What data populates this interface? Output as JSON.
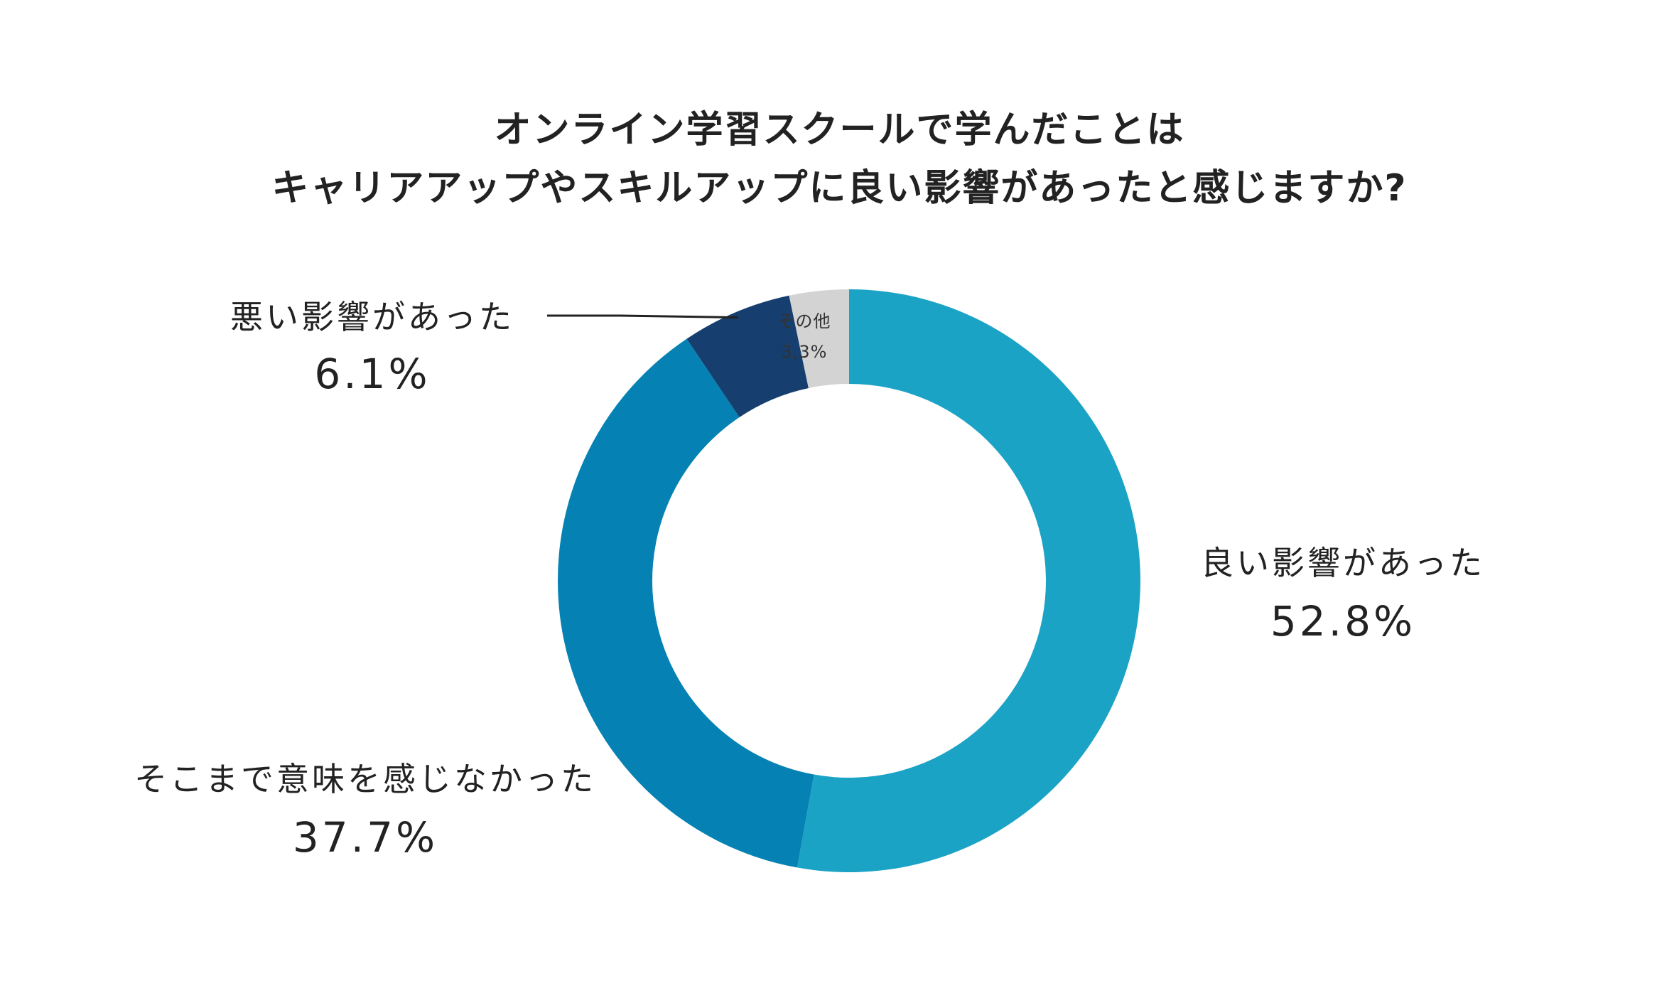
{
  "chart_data": {
    "type": "pie",
    "variant": "donut",
    "title": [
      "オンライン学習スクールで学んだことは",
      "キャリアアップやスキルアップに良い影響があったと感じますか?"
    ],
    "unit": "%",
    "slices": [
      {
        "label": "良い影響があった",
        "value": 52.8,
        "value_text": "52.8%",
        "color": "#1ba3c6"
      },
      {
        "label": "そこまで意味を感じなかった",
        "value": 37.7,
        "value_text": "37.7%",
        "color": "#0582b3"
      },
      {
        "label": "悪い影響があった",
        "value": 6.1,
        "value_text": "6.1%",
        "color": "#163e6e"
      },
      {
        "label": "その他",
        "value": 3.3,
        "value_text": "3,3%",
        "color": "#d3d3d3"
      }
    ],
    "start_angle": "12 o'clock",
    "direction": "clockwise"
  }
}
